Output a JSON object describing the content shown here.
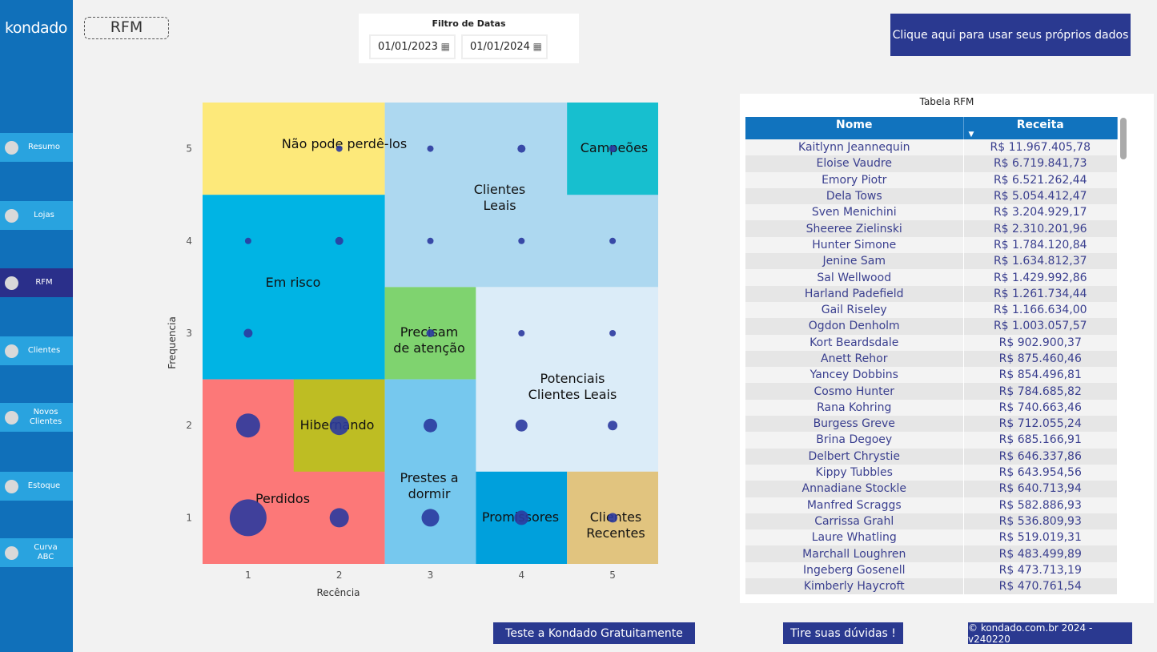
{
  "sidebar": {
    "logo": "kondado",
    "items": [
      {
        "label": "Resumo",
        "active": false
      },
      {
        "label": "Lojas",
        "active": false
      },
      {
        "label": "RFM",
        "active": true
      },
      {
        "label": "Clientes",
        "active": false
      },
      {
        "label": "Novos Clientes",
        "active": false
      },
      {
        "label": "Estoque",
        "active": false
      },
      {
        "label": "Curva ABC",
        "active": false
      }
    ]
  },
  "page_title": "RFM",
  "filter": {
    "title": "Filtro de Datas",
    "start": "01/01/2023",
    "end": "01/01/2024",
    "icon": "calendar-icon"
  },
  "cta": "Clique aqui para usar seus próprios dados",
  "chart_data": {
    "type": "scatter",
    "xlabel": "Recência",
    "ylabel": "Frequencia",
    "x_ticks": [
      1,
      2,
      3,
      4,
      5
    ],
    "y_ticks": [
      1,
      2,
      3,
      4,
      5
    ],
    "segments": [
      {
        "label": "Não pode perdê-los",
        "x": [
          1,
          2
        ],
        "y": [
          5,
          5
        ],
        "color": "#fde97a"
      },
      {
        "label": "Clientes Leais",
        "x": [
          3,
          5
        ],
        "y": [
          4,
          5
        ],
        "color": "#add8f0"
      },
      {
        "label": "Campeões",
        "x": [
          5,
          5
        ],
        "y": [
          5,
          5
        ],
        "color": "#17bfcf"
      },
      {
        "label": "Em risco",
        "x": [
          1,
          2
        ],
        "y": [
          3,
          4
        ],
        "color": "#00b4e4"
      },
      {
        "label": "Precisam de atenção",
        "x": [
          3,
          3
        ],
        "y": [
          3,
          3
        ],
        "color": "#7fd36f"
      },
      {
        "label": "Potenciais Clientes Leais",
        "x": [
          4,
          5
        ],
        "y": [
          2,
          3
        ],
        "color": "#dbecf8"
      },
      {
        "label": "Perdidos",
        "x": [
          1,
          2
        ],
        "y": [
          1,
          2
        ],
        "color": "#fc7878"
      },
      {
        "label": "Hibernando",
        "x": [
          2,
          2
        ],
        "y": [
          2,
          2
        ],
        "color": "#bebd23"
      },
      {
        "label": "Prestes a dormir",
        "x": [
          3,
          3
        ],
        "y": [
          1,
          2
        ],
        "color": "#76c8ee"
      },
      {
        "label": "Promissores",
        "x": [
          4,
          4
        ],
        "y": [
          1,
          1
        ],
        "color": "#00a0dc"
      },
      {
        "label": "Clientes Recentes",
        "x": [
          5,
          5
        ],
        "y": [
          1,
          1
        ],
        "color": "#e1c47f"
      }
    ],
    "points": [
      {
        "x": 1,
        "y": 1,
        "size": 23
      },
      {
        "x": 2,
        "y": 1,
        "size": 12
      },
      {
        "x": 3,
        "y": 1,
        "size": 11
      },
      {
        "x": 4,
        "y": 1,
        "size": 9
      },
      {
        "x": 5,
        "y": 1,
        "size": 6
      },
      {
        "x": 1,
        "y": 2,
        "size": 15
      },
      {
        "x": 2,
        "y": 2,
        "size": 12
      },
      {
        "x": 3,
        "y": 2,
        "size": 8.5
      },
      {
        "x": 4,
        "y": 2,
        "size": 7.5
      },
      {
        "x": 5,
        "y": 2,
        "size": 6
      },
      {
        "x": 1,
        "y": 3,
        "size": 5.5
      },
      {
        "x": 3,
        "y": 3,
        "size": 5
      },
      {
        "x": 4,
        "y": 3,
        "size": 4
      },
      {
        "x": 5,
        "y": 3,
        "size": 4
      },
      {
        "x": 1,
        "y": 4,
        "size": 4
      },
      {
        "x": 2,
        "y": 4,
        "size": 5
      },
      {
        "x": 3,
        "y": 4,
        "size": 4
      },
      {
        "x": 4,
        "y": 4,
        "size": 4
      },
      {
        "x": 5,
        "y": 4,
        "size": 4
      },
      {
        "x": 2,
        "y": 5,
        "size": 4
      },
      {
        "x": 3,
        "y": 5,
        "size": 4
      },
      {
        "x": 4,
        "y": 5,
        "size": 5
      },
      {
        "x": 5,
        "y": 5,
        "size": 4.5
      }
    ],
    "point_color": "#2b3a9e"
  },
  "table": {
    "title": "Tabela RFM",
    "columns": [
      "Nome",
      "Receita"
    ],
    "rows": [
      [
        "Kaitlynn Jeannequin",
        "R$ 11.967.405,78"
      ],
      [
        "Eloise Vaudre",
        "R$ 6.719.841,73"
      ],
      [
        "Emory Piotr",
        "R$ 6.521.262,44"
      ],
      [
        "Dela Tows",
        "R$ 5.054.412,47"
      ],
      [
        "Sven Menichini",
        "R$ 3.204.929,17"
      ],
      [
        "Sheeree Zielinski",
        "R$ 2.310.201,96"
      ],
      [
        "Hunter Simone",
        "R$ 1.784.120,84"
      ],
      [
        "Jenine Sam",
        "R$ 1.634.812,37"
      ],
      [
        "Sal Wellwood",
        "R$ 1.429.992,86"
      ],
      [
        "Harland Padefield",
        "R$ 1.261.734,44"
      ],
      [
        "Gail Riseley",
        "R$ 1.166.634,00"
      ],
      [
        "Ogdon Denholm",
        "R$ 1.003.057,57"
      ],
      [
        "Kort Beardsdale",
        "R$ 902.900,37"
      ],
      [
        "Anett Rehor",
        "R$ 875.460,46"
      ],
      [
        "Yancey Dobbins",
        "R$ 854.496,81"
      ],
      [
        "Cosmo Hunter",
        "R$ 784.685,82"
      ],
      [
        "Rana Kohring",
        "R$ 740.663,46"
      ],
      [
        "Burgess Greve",
        "R$ 712.055,24"
      ],
      [
        "Brina Degoey",
        "R$ 685.166,91"
      ],
      [
        "Delbert Chrystie",
        "R$ 646.337,86"
      ],
      [
        "Kippy Tubbles",
        "R$ 643.954,56"
      ],
      [
        "Annadiane Stockle",
        "R$ 640.713,94"
      ],
      [
        "Manfred Scraggs",
        "R$ 582.886,93"
      ],
      [
        "Carrissa Grahl",
        "R$ 536.809,93"
      ],
      [
        "Laure Whatling",
        "R$ 519.019,31"
      ],
      [
        "Marchall Loughren",
        "R$ 483.499,89"
      ],
      [
        "Ingeberg Gosenell",
        "R$ 473.713,19"
      ],
      [
        "Kimberly Haycroft",
        "R$ 470.761,54"
      ]
    ]
  },
  "footer": {
    "trial": "Teste a Kondado Gratuitamente",
    "help": "Tire suas dúvidas !",
    "copyright": "© kondado.com.br 2024 - v240220"
  }
}
